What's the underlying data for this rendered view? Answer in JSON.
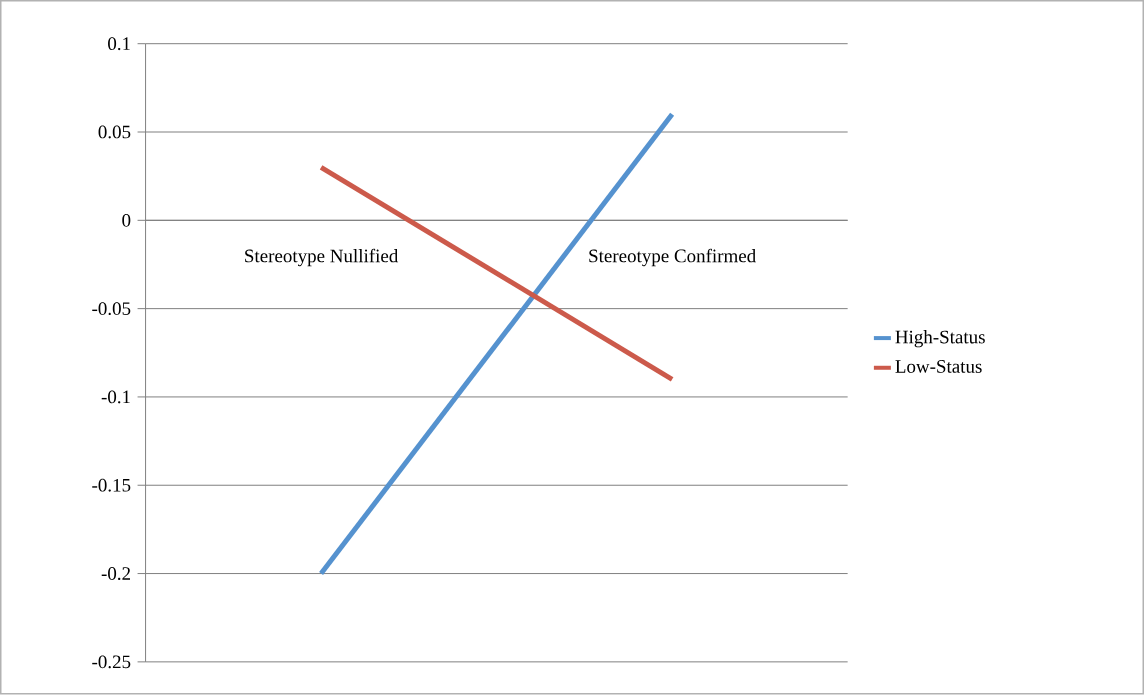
{
  "chart_data": {
    "type": "line",
    "categories": [
      "Stereotype Nullified",
      "Stereotype Confirmed"
    ],
    "series": [
      {
        "name": "High-Status",
        "color": "#5592cf",
        "values": [
          -0.2,
          0.06
        ]
      },
      {
        "name": "Low-Status",
        "color": "#cc5a4b",
        "values": [
          0.03,
          -0.09
        ]
      }
    ],
    "ylim": [
      -0.25,
      0.1
    ],
    "yticks": [
      -0.25,
      -0.2,
      -0.15,
      -0.1,
      -0.05,
      0,
      0.05,
      0.1
    ],
    "grid": "y",
    "legend": "right"
  }
}
